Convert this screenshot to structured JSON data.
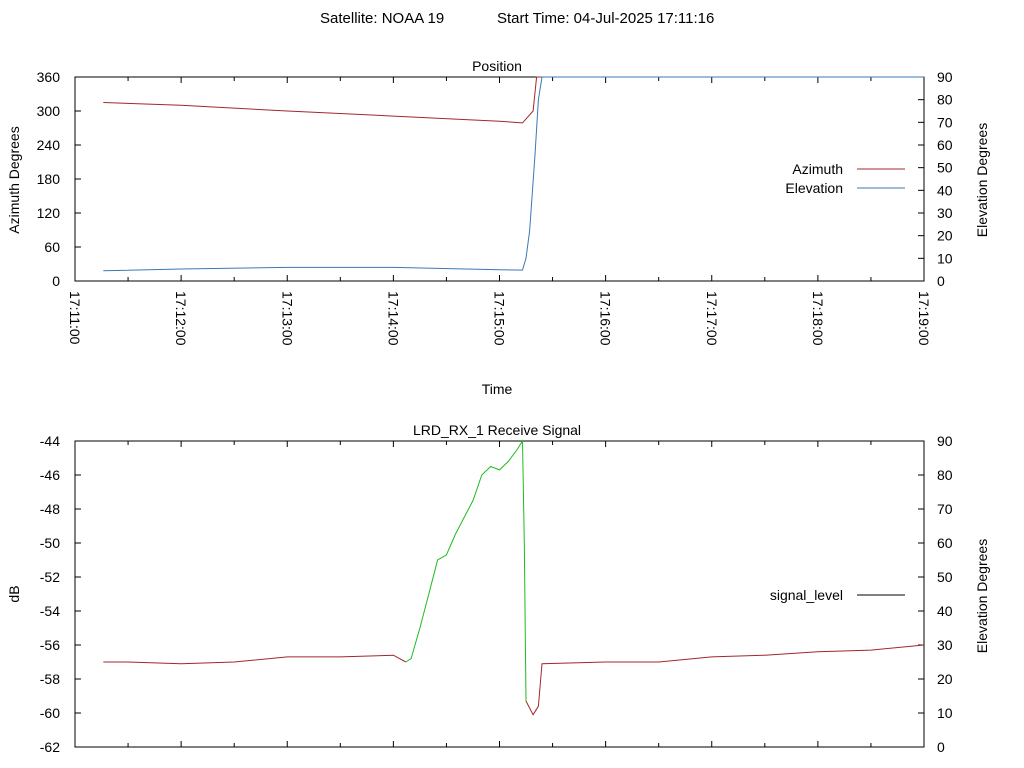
{
  "header": {
    "satellite": "Satellite: NOAA 19",
    "start_time": "Start Time: 04-Jul-2025 17:11:16"
  },
  "colors": {
    "azimuth": "#a0282d",
    "elevation": "#3c78b4",
    "signal_low": "#a0282d",
    "signal_high": "#1fba1f",
    "signal_key": "#000000"
  },
  "chart_data": [
    {
      "type": "line",
      "title": "Position",
      "xlabel": "Time",
      "ylabel": "Azimuth Degrees",
      "y2label": "Elevation Degrees",
      "ylim": [
        0,
        360
      ],
      "y2lim": [
        0,
        90
      ],
      "xlim": [
        "17:11:00",
        "17:19:00"
      ],
      "yticks": [
        "0",
        "60",
        "120",
        "180",
        "240",
        "300",
        "360"
      ],
      "y2ticks": [
        "0",
        "10",
        "20",
        "30",
        "40",
        "50",
        "60",
        "70",
        "80",
        "90"
      ],
      "xticks": [
        "17:11:00",
        "17:12:00",
        "17:13:00",
        "17:14:00",
        "17:15:00",
        "17:16:00",
        "17:17:00",
        "17:18:00",
        "17:19:00"
      ],
      "legend_position": "right",
      "series": [
        {
          "name": "Azimuth",
          "axis": "y",
          "points": [
            [
              "17:11:16",
              315
            ],
            [
              "17:12:00",
              310
            ],
            [
              "17:13:00",
              300
            ],
            [
              "17:14:00",
              291
            ],
            [
              "17:15:00",
              282
            ],
            [
              "17:15:13",
              279
            ],
            [
              "17:15:19",
              300
            ],
            [
              "17:15:21",
              360
            ],
            [
              "17:19:00",
              360
            ]
          ]
        },
        {
          "name": "Elevation",
          "axis": "y2",
          "points": [
            [
              "17:11:16",
              4.5
            ],
            [
              "17:12:00",
              5.3
            ],
            [
              "17:13:00",
              6
            ],
            [
              "17:14:00",
              6
            ],
            [
              "17:15:00",
              5
            ],
            [
              "17:15:13",
              4.8
            ],
            [
              "17:15:15",
              10
            ],
            [
              "17:15:17",
              22
            ],
            [
              "17:15:20",
              55
            ],
            [
              "17:15:22",
              80
            ],
            [
              "17:15:24",
              90
            ],
            [
              "17:19:00",
              90
            ]
          ]
        }
      ]
    },
    {
      "type": "line",
      "title": "LRD_RX_1 Receive Signal",
      "ylabel": "dB",
      "y2label": "Elevation Degrees",
      "ylim": [
        -62,
        -44
      ],
      "y2lim": [
        0,
        90
      ],
      "yticks": [
        "-62",
        "-60",
        "-58",
        "-56",
        "-54",
        "-52",
        "-50",
        "-48",
        "-46",
        "-44"
      ],
      "y2ticks": [
        "0",
        "10",
        "20",
        "30",
        "40",
        "50",
        "60",
        "70",
        "80",
        "90"
      ],
      "legend_position": "right",
      "series": [
        {
          "name": "signal_level",
          "points": [
            [
              "17:11:16",
              -57
            ],
            [
              "17:11:30",
              -57
            ],
            [
              "17:12:00",
              -57.1
            ],
            [
              "17:12:30",
              -57
            ],
            [
              "17:13:00",
              -56.7
            ],
            [
              "17:13:30",
              -56.7
            ],
            [
              "17:14:00",
              -56.6
            ],
            [
              "17:14:07",
              -57
            ],
            [
              "17:14:10",
              -56.8
            ],
            [
              "17:14:15",
              -55
            ],
            [
              "17:14:20",
              -53
            ],
            [
              "17:14:25",
              -51
            ],
            [
              "17:14:30",
              -50.7
            ],
            [
              "17:14:35",
              -49.5
            ],
            [
              "17:14:40",
              -48.5
            ],
            [
              "17:14:45",
              -47.5
            ],
            [
              "17:14:50",
              -46
            ],
            [
              "17:14:55",
              -45.5
            ],
            [
              "17:15:00",
              -45.7
            ],
            [
              "17:15:05",
              -45.2
            ],
            [
              "17:15:10",
              -44.5
            ],
            [
              "17:15:13",
              -44
            ],
            [
              "17:15:14",
              -50
            ],
            [
              "17:15:15",
              -59.3
            ],
            [
              "17:15:19",
              -60.1
            ],
            [
              "17:15:22",
              -59.6
            ],
            [
              "17:15:24",
              -57.1
            ],
            [
              "17:16:00",
              -57
            ],
            [
              "17:16:30",
              -57
            ],
            [
              "17:17:00",
              -56.7
            ],
            [
              "17:17:30",
              -56.6
            ],
            [
              "17:18:00",
              -56.4
            ],
            [
              "17:18:30",
              -56.3
            ],
            [
              "17:19:00",
              -56
            ]
          ]
        }
      ]
    }
  ]
}
